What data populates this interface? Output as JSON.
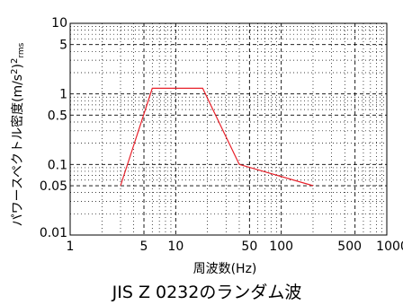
{
  "chart_data": {
    "type": "line",
    "title": "JIS Z 0232のランダム波",
    "xlabel": "周波数(Hz)",
    "ylabel": "パワースペクトル密度(m/s²)²rms",
    "ylabel_main": "パワースペクトル密度(m/s",
    "ylabel_sup1": "2",
    "ylabel_mid": ")",
    "ylabel_sup2": "2",
    "ylabel_sub": "rms",
    "x_scale": "log",
    "y_scale": "log",
    "xlim": [
      1,
      1000
    ],
    "ylim": [
      0.01,
      10
    ],
    "x_ticks": [
      {
        "value": 1,
        "label": "1"
      },
      {
        "value": 5,
        "label": "5"
      },
      {
        "value": 10,
        "label": "10"
      },
      {
        "value": 50,
        "label": "50"
      },
      {
        "value": 100,
        "label": "100"
      },
      {
        "value": 500,
        "label": "500"
      },
      {
        "value": 1000,
        "label": "1000"
      }
    ],
    "y_ticks": [
      {
        "value": 0.01,
        "label": "0.01"
      },
      {
        "value": 0.05,
        "label": "0.05"
      },
      {
        "value": 0.1,
        "label": "0.1"
      },
      {
        "value": 0.5,
        "label": "0.5"
      },
      {
        "value": 1,
        "label": "1"
      },
      {
        "value": 5,
        "label": "5"
      },
      {
        "value": 10,
        "label": "10"
      }
    ],
    "grid": true,
    "series": [
      {
        "color": "#e8202a",
        "x": [
          3,
          6,
          18,
          40,
          200
        ],
        "y": [
          0.05,
          1.2,
          1.2,
          0.1,
          0.05
        ]
      }
    ]
  }
}
